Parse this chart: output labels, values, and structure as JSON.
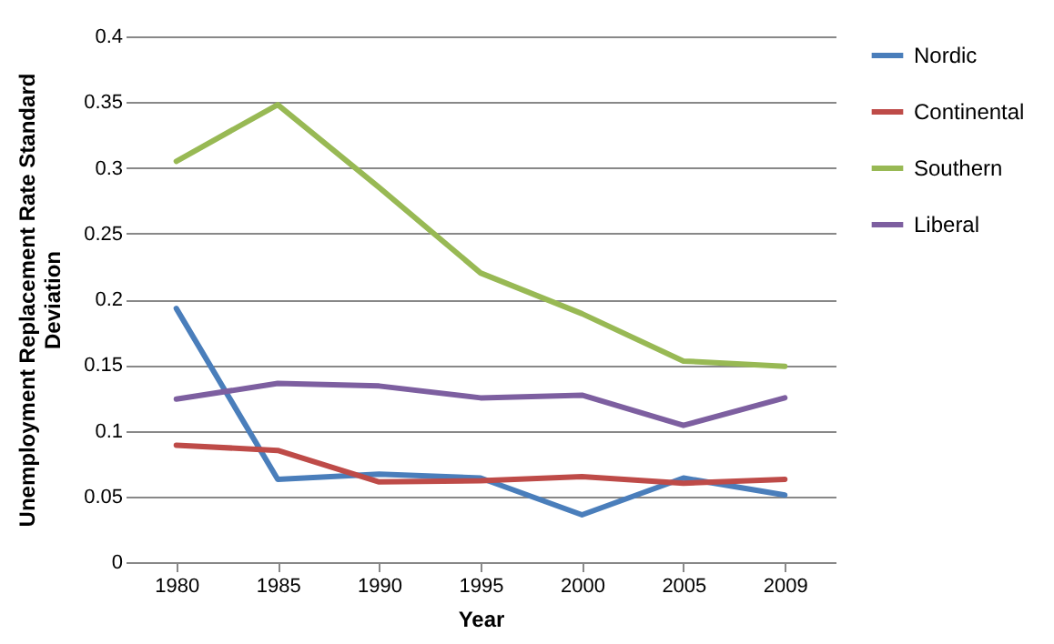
{
  "chart_data": {
    "type": "line",
    "xlabel": "Year",
    "ylabel": "Unemployment Replacement Rate Standard Deviation",
    "categories": [
      "1980",
      "1985",
      "1990",
      "1995",
      "2000",
      "2005",
      "2009"
    ],
    "series": [
      {
        "name": "Nordic",
        "color": "#4a7ebb",
        "values": [
          0.193,
          0.063,
          0.067,
          0.064,
          0.036,
          0.064,
          0.051
        ]
      },
      {
        "name": "Continental",
        "color": "#be4b48",
        "values": [
          0.089,
          0.085,
          0.061,
          0.062,
          0.065,
          0.06,
          0.063
        ]
      },
      {
        "name": "Southern",
        "color": "#98b954",
        "values": [
          0.305,
          0.348,
          0.285,
          0.22,
          0.189,
          0.153,
          0.149
        ]
      },
      {
        "name": "Liberal",
        "color": "#7d5fa0",
        "values": [
          0.124,
          0.136,
          0.134,
          0.125,
          0.127,
          0.104,
          0.125
        ]
      }
    ],
    "ylim": [
      0,
      0.4
    ],
    "yticks": [
      0,
      0.05,
      0.1,
      0.15,
      0.2,
      0.25,
      0.3,
      0.35,
      0.4
    ],
    "grid": "y",
    "legend": "right",
    "marker": "none",
    "line_style": "solid"
  }
}
